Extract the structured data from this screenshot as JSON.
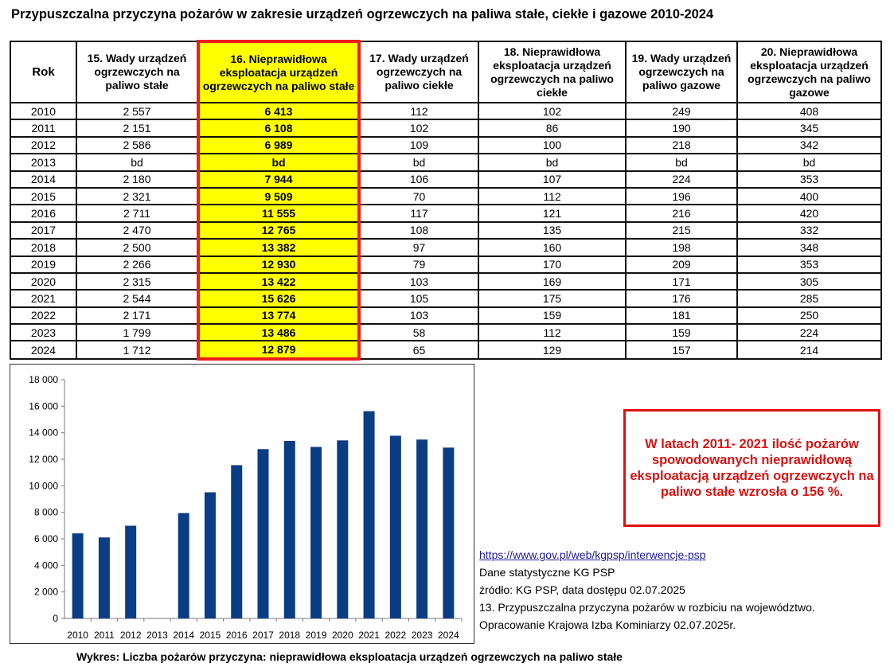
{
  "title": "Przypuszczalna przyczyna pożarów w zakresie urządzeń ogrzewczych na paliwa stałe, ciekłe i gazowe 2010-2024",
  "table": {
    "headers": [
      "Rok",
      "15. Wady urządzeń ogrzewczych na paliwo stałe",
      "16. Nieprawidłowa eksploatacja urządzeń ogrzewczych na paliwo stałe",
      "17. Wady urządzeń ogrzewczych na paliwo ciekłe",
      "18. Nieprawidłowa eksploatacja urządzeń ogrzewczych na paliwo ciekłe",
      "19. Wady urządzeń ogrzewczych na paliwo gazowe",
      "20. Nieprawidłowa eksploatacja urządzeń ogrzewczych na paliwo gazowe"
    ],
    "rows": [
      [
        "2010",
        "2 557",
        "6 413",
        "112",
        "102",
        "249",
        "408"
      ],
      [
        "2011",
        "2 151",
        "6 108",
        "102",
        "86",
        "190",
        "345"
      ],
      [
        "2012",
        "2 586",
        "6 989",
        "109",
        "100",
        "218",
        "342"
      ],
      [
        "2013",
        "bd",
        "bd",
        "bd",
        "bd",
        "bd",
        "bd"
      ],
      [
        "2014",
        "2 180",
        "7 944",
        "106",
        "107",
        "224",
        "353"
      ],
      [
        "2015",
        "2 321",
        "9 509",
        "70",
        "112",
        "196",
        "400"
      ],
      [
        "2016",
        "2 711",
        "11 555",
        "117",
        "121",
        "216",
        "420"
      ],
      [
        "2017",
        "2 470",
        "12 765",
        "108",
        "135",
        "215",
        "332"
      ],
      [
        "2018",
        "2 500",
        "13 382",
        "97",
        "160",
        "198",
        "348"
      ],
      [
        "2019",
        "2 266",
        "12 930",
        "79",
        "170",
        "209",
        "353"
      ],
      [
        "2020",
        "2 315",
        "13 422",
        "103",
        "169",
        "171",
        "305"
      ],
      [
        "2021",
        "2 544",
        "15 626",
        "105",
        "175",
        "176",
        "285"
      ],
      [
        "2022",
        "2 171",
        "13 774",
        "103",
        "159",
        "181",
        "250"
      ],
      [
        "2023",
        "1 799",
        "13 486",
        "58",
        "112",
        "159",
        "224"
      ],
      [
        "2024",
        "1 712",
        "12 879",
        "65",
        "129",
        "157",
        "214"
      ]
    ],
    "highlight_color": "#ffff00",
    "highlight_border": "#ee1c1c"
  },
  "note": "W latach  2011- 2021 ilość pożarów spowodowanych nieprawidłową eksploatacją urządzeń ogrzewczych na paliwo stałe wzrosła o 156 %.",
  "source": {
    "link": "https://www.gov.pl/web/kgpsp/interwencje-psp",
    "lines": [
      "Dane statystyczne KG PSP",
      "źródło: KG PSP, data dostępu 02.07.2025",
      "13. Przypuszczalna przyczyna pożarów w rozbiciu na województwo.",
      "Opracowanie Krajowa Izba Kominiarzy  02.07.2025r."
    ]
  },
  "caption": "Wykres:  Liczba pożarów przyczyna: nieprawidłowa eksploatacja urządzeń ogrzewczych na paliwo stałe",
  "chart_data": {
    "type": "bar",
    "title": "",
    "xlabel": "",
    "ylabel": "",
    "categories": [
      "2010",
      "2011",
      "2012",
      "2013",
      "2014",
      "2015",
      "2016",
      "2017",
      "2018",
      "2019",
      "2020",
      "2021",
      "2022",
      "2023",
      "2024"
    ],
    "values": [
      6413,
      6108,
      6989,
      null,
      7944,
      9509,
      11555,
      12765,
      13382,
      12930,
      13422,
      15626,
      13774,
      13486,
      12879
    ],
    "ylim": [
      0,
      18000
    ],
    "yticks": [
      0,
      2000,
      4000,
      6000,
      8000,
      10000,
      12000,
      14000,
      16000,
      18000
    ],
    "ytick_labels": [
      "0",
      "2 000",
      "4 000",
      "6 000",
      "8 000",
      "10 000",
      "12 000",
      "14 000",
      "16 000",
      "18 000"
    ],
    "bar_color": "#0b3d85",
    "grid": false,
    "legend": "none"
  }
}
